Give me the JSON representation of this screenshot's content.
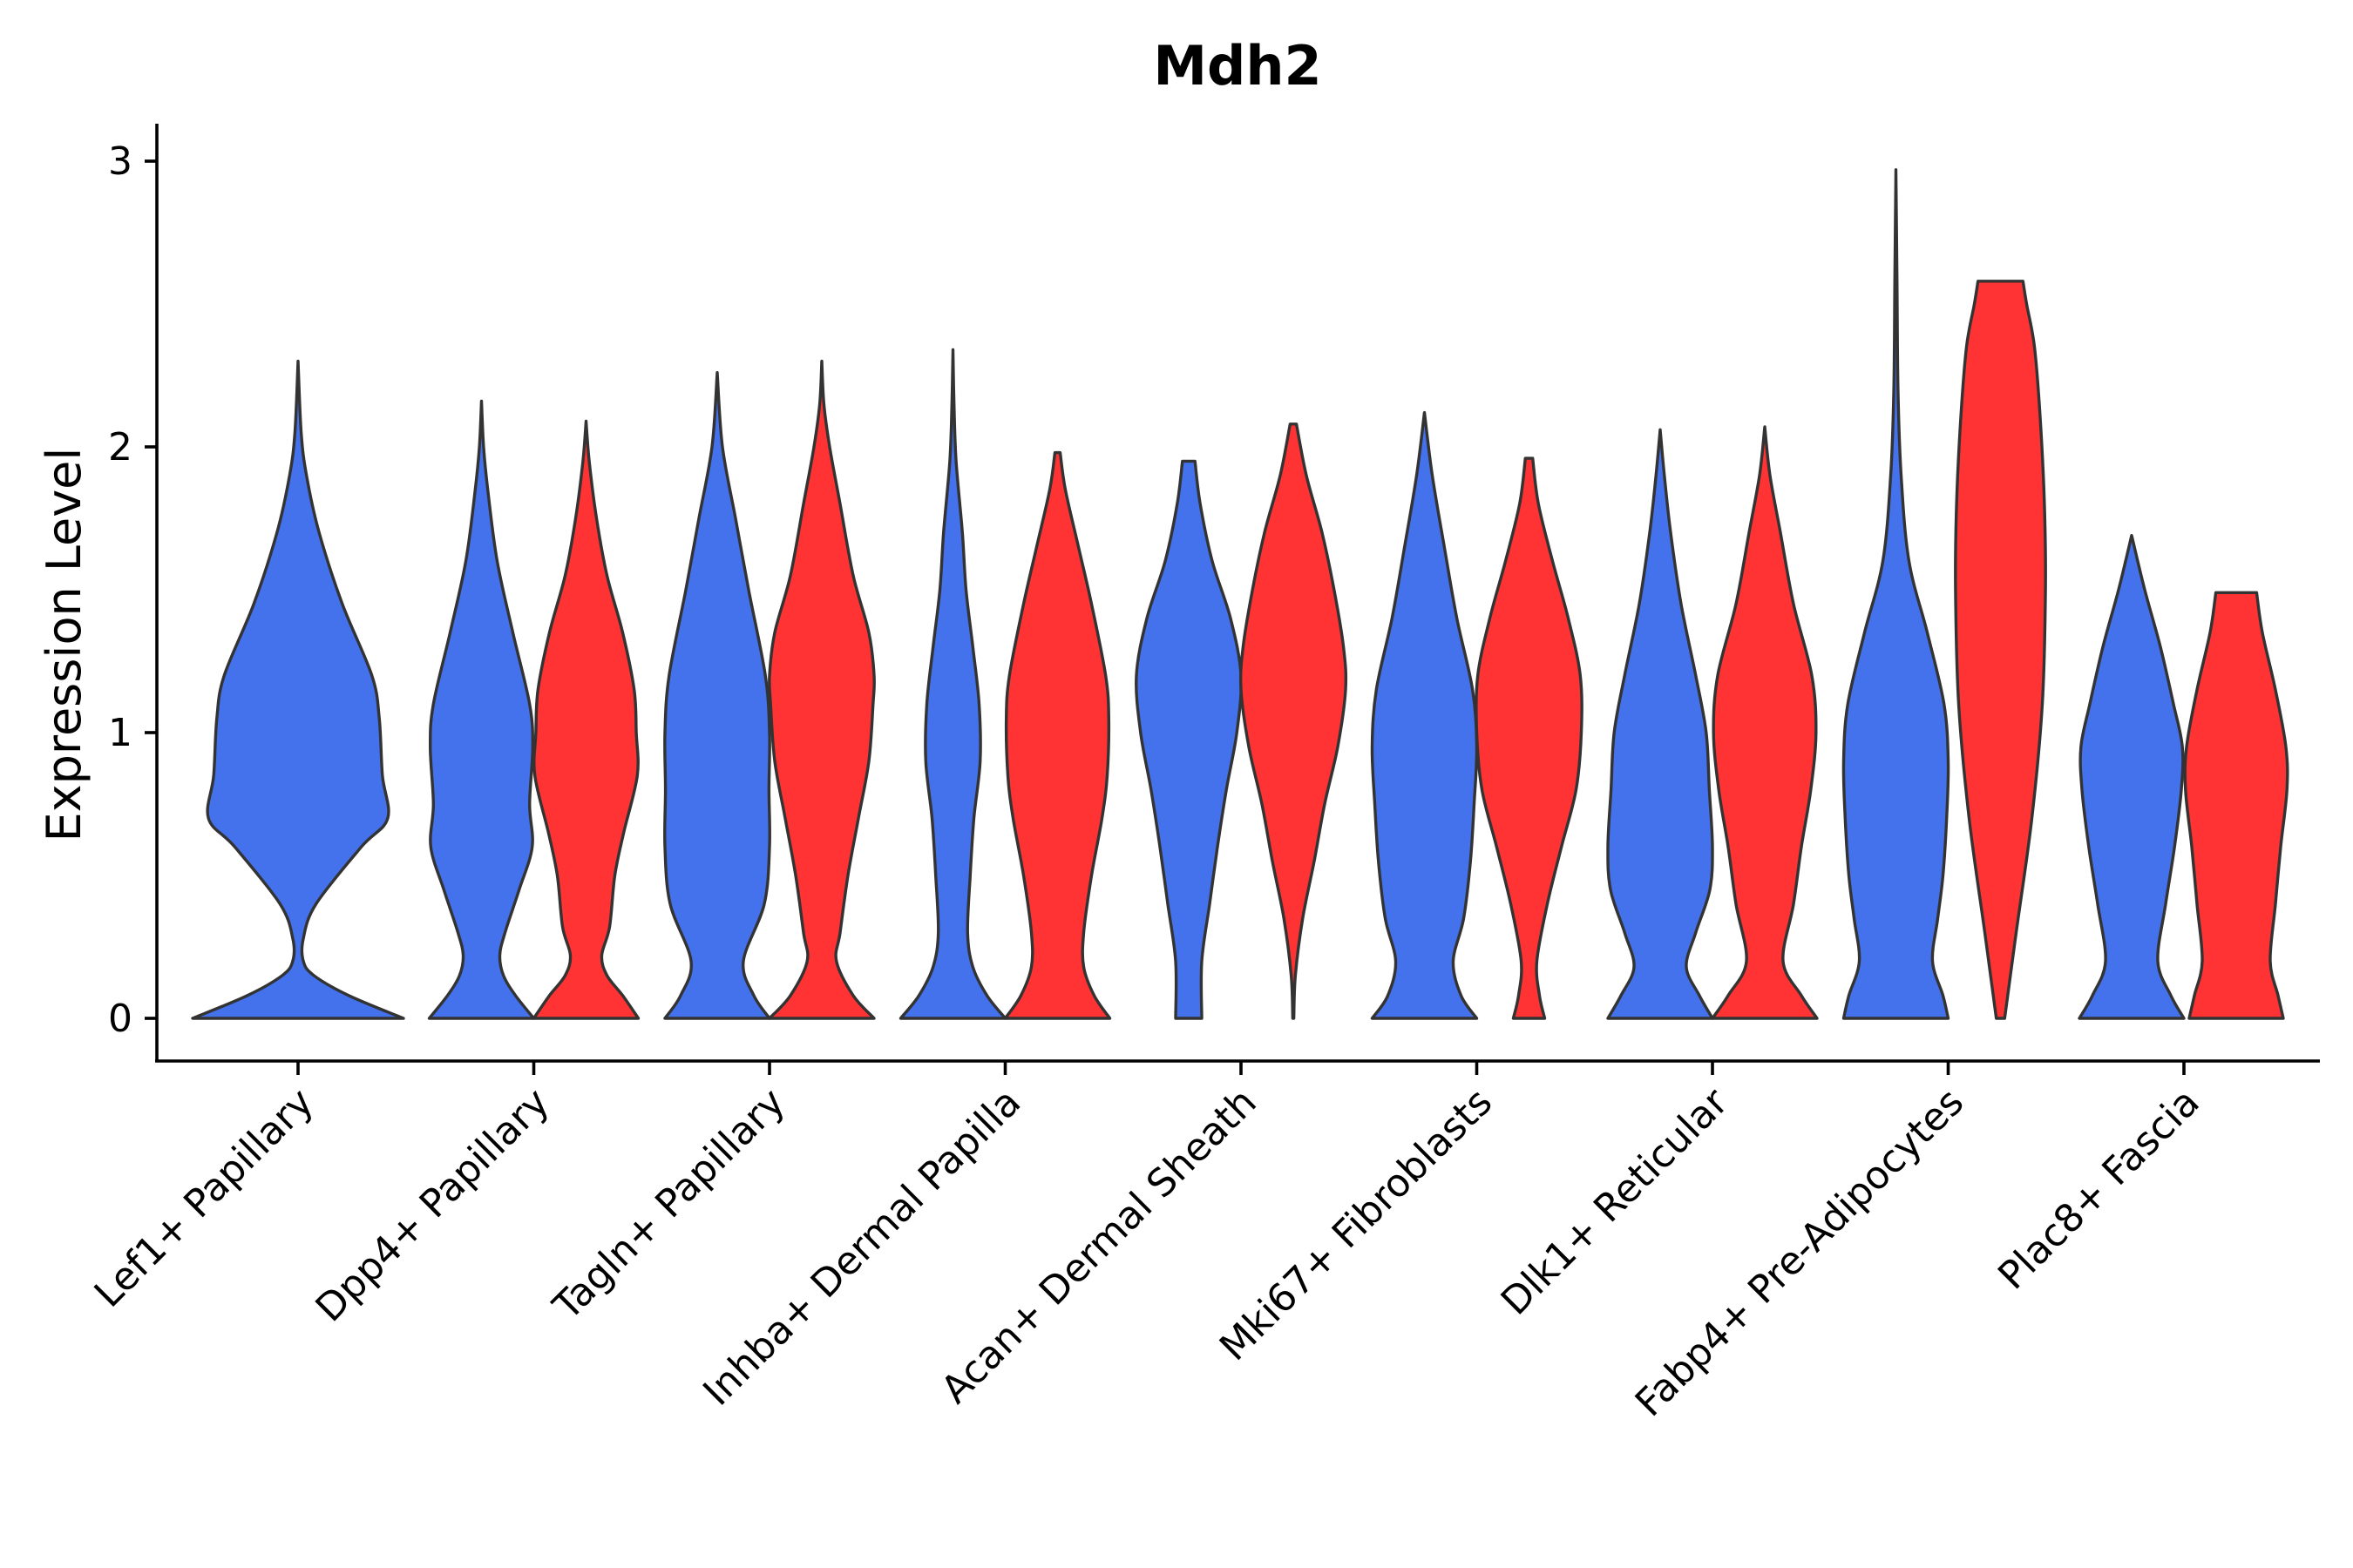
{
  "chart_data": {
    "type": "violin",
    "title": "Mdh2",
    "xlabel": "",
    "ylabel": "Expression Level",
    "ylim": [
      -0.15,
      3.15
    ],
    "yticks": [
      0,
      1,
      2,
      3
    ],
    "grid": false,
    "legend": "none",
    "colors": {
      "group_a": "#4472ED",
      "group_b": "#FF3333",
      "outline": "#333333"
    },
    "categories": [
      "Lef1+ Papillary",
      "Dpp4+ Papillary",
      "Tagln+ Papillary",
      "Inhba+ Dermal Papilla",
      "Acan+ Dermal Sheath",
      "Mki67+ Fibroblasts",
      "Dlk1+ Reticular",
      "Fabp4+ Pre-Adipocytes",
      "Plac8+ Fascia"
    ],
    "violins": [
      {
        "category": 0,
        "group": "a",
        "ymin": 0,
        "ymax": 2.3,
        "profile": [
          [
            0,
            1.0
          ],
          [
            0.08,
            0.48
          ],
          [
            0.15,
            0.15
          ],
          [
            0.2,
            0.05
          ],
          [
            0.28,
            0.05
          ],
          [
            0.4,
            0.17
          ],
          [
            0.6,
            0.6
          ],
          [
            0.7,
            0.85
          ],
          [
            0.85,
            0.8
          ],
          [
            1.05,
            0.77
          ],
          [
            1.2,
            0.7
          ],
          [
            1.45,
            0.42
          ],
          [
            1.7,
            0.2
          ],
          [
            1.9,
            0.08
          ],
          [
            2.05,
            0.03
          ],
          [
            2.3,
            0
          ]
        ]
      },
      {
        "category": 1,
        "group": "a",
        "ymin": 0,
        "ymax": 2.16,
        "profile": [
          [
            0,
            1.0
          ],
          [
            0.08,
            0.65
          ],
          [
            0.15,
            0.42
          ],
          [
            0.22,
            0.35
          ],
          [
            0.3,
            0.45
          ],
          [
            0.45,
            0.72
          ],
          [
            0.6,
            0.97
          ],
          [
            0.75,
            0.92
          ],
          [
            0.95,
            0.98
          ],
          [
            1.1,
            0.92
          ],
          [
            1.35,
            0.6
          ],
          [
            1.6,
            0.3
          ],
          [
            1.85,
            0.12
          ],
          [
            2.0,
            0.04
          ],
          [
            2.16,
            0
          ]
        ]
      },
      {
        "category": 1,
        "group": "b",
        "ymin": 0,
        "ymax": 2.09,
        "profile": [
          [
            0,
            1.0
          ],
          [
            0.08,
            0.7
          ],
          [
            0.15,
            0.4
          ],
          [
            0.22,
            0.3
          ],
          [
            0.32,
            0.45
          ],
          [
            0.5,
            0.55
          ],
          [
            0.65,
            0.72
          ],
          [
            0.85,
            0.98
          ],
          [
            1.0,
            0.96
          ],
          [
            1.15,
            0.92
          ],
          [
            1.35,
            0.7
          ],
          [
            1.55,
            0.4
          ],
          [
            1.75,
            0.2
          ],
          [
            1.95,
            0.06
          ],
          [
            2.09,
            0
          ]
        ]
      },
      {
        "category": 2,
        "group": "a",
        "ymin": 0,
        "ymax": 2.26,
        "profile": [
          [
            0,
            1.0
          ],
          [
            0.08,
            0.7
          ],
          [
            0.2,
            0.5
          ],
          [
            0.4,
            0.9
          ],
          [
            0.6,
            1.0
          ],
          [
            0.8,
            0.99
          ],
          [
            1.0,
            1.0
          ],
          [
            1.2,
            0.92
          ],
          [
            1.5,
            0.6
          ],
          [
            1.75,
            0.35
          ],
          [
            2.0,
            0.1
          ],
          [
            2.26,
            0
          ]
        ]
      },
      {
        "category": 2,
        "group": "b",
        "ymin": 0,
        "ymax": 2.3,
        "profile": [
          [
            0,
            1.0
          ],
          [
            0.08,
            0.6
          ],
          [
            0.2,
            0.28
          ],
          [
            0.3,
            0.35
          ],
          [
            0.5,
            0.5
          ],
          [
            0.7,
            0.7
          ],
          [
            0.9,
            0.9
          ],
          [
            1.1,
            0.98
          ],
          [
            1.2,
            1.0
          ],
          [
            1.35,
            0.9
          ],
          [
            1.55,
            0.6
          ],
          [
            1.8,
            0.35
          ],
          [
            2.0,
            0.15
          ],
          [
            2.15,
            0.04
          ],
          [
            2.3,
            0
          ]
        ]
      },
      {
        "category": 3,
        "group": "a",
        "ymin": 0,
        "ymax": 2.34,
        "profile": [
          [
            0,
            1.0
          ],
          [
            0.08,
            0.65
          ],
          [
            0.18,
            0.38
          ],
          [
            0.3,
            0.28
          ],
          [
            0.5,
            0.33
          ],
          [
            0.7,
            0.4
          ],
          [
            0.9,
            0.52
          ],
          [
            1.1,
            0.5
          ],
          [
            1.3,
            0.38
          ],
          [
            1.5,
            0.25
          ],
          [
            1.7,
            0.18
          ],
          [
            1.95,
            0.06
          ],
          [
            2.15,
            0.02
          ],
          [
            2.34,
            0
          ]
        ]
      },
      {
        "category": 3,
        "group": "b",
        "ymin": 0,
        "ymax": 1.98,
        "profile": [
          [
            0,
            1.0
          ],
          [
            0.08,
            0.7
          ],
          [
            0.18,
            0.5
          ],
          [
            0.3,
            0.5
          ],
          [
            0.5,
            0.65
          ],
          [
            0.7,
            0.85
          ],
          [
            0.85,
            0.95
          ],
          [
            1.05,
            0.98
          ],
          [
            1.2,
            0.92
          ],
          [
            1.45,
            0.65
          ],
          [
            1.65,
            0.4
          ],
          [
            1.85,
            0.15
          ],
          [
            1.98,
            0.05
          ]
        ]
      },
      {
        "category": 4,
        "group": "a",
        "ymin": 0,
        "ymax": 1.95,
        "profile": [
          [
            0,
            0.25
          ],
          [
            0.2,
            0.25
          ],
          [
            0.4,
            0.4
          ],
          [
            0.6,
            0.55
          ],
          [
            0.8,
            0.72
          ],
          [
            1.0,
            0.92
          ],
          [
            1.2,
            1.0
          ],
          [
            1.4,
            0.8
          ],
          [
            1.6,
            0.45
          ],
          [
            1.8,
            0.22
          ],
          [
            1.95,
            0.12
          ]
        ]
      },
      {
        "category": 4,
        "group": "b",
        "ymin": 0,
        "ymax": 2.08,
        "profile": [
          [
            0,
            0.01
          ],
          [
            0.15,
            0.04
          ],
          [
            0.35,
            0.18
          ],
          [
            0.55,
            0.4
          ],
          [
            0.75,
            0.6
          ],
          [
            0.95,
            0.85
          ],
          [
            1.15,
            1.0
          ],
          [
            1.3,
            0.96
          ],
          [
            1.5,
            0.78
          ],
          [
            1.7,
            0.55
          ],
          [
            1.9,
            0.25
          ],
          [
            2.08,
            0.06
          ]
        ]
      },
      {
        "category": 5,
        "group": "a",
        "ymin": 0,
        "ymax": 2.12,
        "profile": [
          [
            0,
            1.0
          ],
          [
            0.08,
            0.7
          ],
          [
            0.2,
            0.55
          ],
          [
            0.35,
            0.75
          ],
          [
            0.55,
            0.88
          ],
          [
            0.75,
            0.95
          ],
          [
            0.95,
            1.0
          ],
          [
            1.15,
            0.92
          ],
          [
            1.4,
            0.62
          ],
          [
            1.65,
            0.38
          ],
          [
            1.9,
            0.15
          ],
          [
            2.12,
            0
          ]
        ]
      },
      {
        "category": 5,
        "group": "b",
        "ymin": 0,
        "ymax": 1.96,
        "profile": [
          [
            0,
            0.3
          ],
          [
            0.08,
            0.2
          ],
          [
            0.2,
            0.15
          ],
          [
            0.4,
            0.35
          ],
          [
            0.6,
            0.62
          ],
          [
            0.8,
            0.9
          ],
          [
            1.0,
            1.0
          ],
          [
            1.2,
            0.98
          ],
          [
            1.4,
            0.75
          ],
          [
            1.6,
            0.45
          ],
          [
            1.8,
            0.18
          ],
          [
            1.96,
            0.07
          ]
        ]
      },
      {
        "category": 6,
        "group": "a",
        "ymin": 0,
        "ymax": 2.06,
        "profile": [
          [
            0,
            1.0
          ],
          [
            0.08,
            0.75
          ],
          [
            0.18,
            0.5
          ],
          [
            0.3,
            0.68
          ],
          [
            0.45,
            0.95
          ],
          [
            0.6,
            1.0
          ],
          [
            0.8,
            0.94
          ],
          [
            1.0,
            0.88
          ],
          [
            1.2,
            0.68
          ],
          [
            1.45,
            0.4
          ],
          [
            1.7,
            0.2
          ],
          [
            1.9,
            0.08
          ],
          [
            2.06,
            0
          ]
        ]
      },
      {
        "category": 6,
        "group": "b",
        "ymin": 0,
        "ymax": 2.07,
        "profile": [
          [
            0,
            1.0
          ],
          [
            0.08,
            0.7
          ],
          [
            0.2,
            0.35
          ],
          [
            0.4,
            0.55
          ],
          [
            0.6,
            0.7
          ],
          [
            0.8,
            0.88
          ],
          [
            1.0,
            0.98
          ],
          [
            1.2,
            0.9
          ],
          [
            1.45,
            0.55
          ],
          [
            1.7,
            0.3
          ],
          [
            1.9,
            0.1
          ],
          [
            2.07,
            0
          ]
        ]
      },
      {
        "category": 7,
        "group": "a",
        "ymin": 0,
        "ymax": 2.97,
        "profile": [
          [
            0,
            1.0
          ],
          [
            0.08,
            0.9
          ],
          [
            0.2,
            0.7
          ],
          [
            0.35,
            0.8
          ],
          [
            0.5,
            0.9
          ],
          [
            0.7,
            0.97
          ],
          [
            0.9,
            1.0
          ],
          [
            1.1,
            0.92
          ],
          [
            1.35,
            0.6
          ],
          [
            1.6,
            0.25
          ],
          [
            1.9,
            0.1
          ],
          [
            2.2,
            0.04
          ],
          [
            2.6,
            0.02
          ],
          [
            2.97,
            0
          ]
        ]
      },
      {
        "category": 7,
        "group": "b",
        "ymin": 0,
        "ymax": 2.58,
        "profile": [
          [
            0,
            0.08
          ],
          [
            0.3,
            0.3
          ],
          [
            0.7,
            0.6
          ],
          [
            1.1,
            0.8
          ],
          [
            1.5,
            0.86
          ],
          [
            1.8,
            0.84
          ],
          [
            2.1,
            0.76
          ],
          [
            2.35,
            0.65
          ],
          [
            2.5,
            0.5
          ],
          [
            2.58,
            0.43
          ]
        ]
      },
      {
        "category": 8,
        "group": "a",
        "ymin": 0,
        "ymax": 1.69,
        "profile": [
          [
            0,
            1.0
          ],
          [
            0.08,
            0.75
          ],
          [
            0.2,
            0.5
          ],
          [
            0.4,
            0.65
          ],
          [
            0.6,
            0.82
          ],
          [
            0.8,
            0.95
          ],
          [
            0.95,
            0.97
          ],
          [
            1.1,
            0.8
          ],
          [
            1.3,
            0.55
          ],
          [
            1.5,
            0.25
          ],
          [
            1.69,
            0
          ]
        ]
      },
      {
        "category": 8,
        "group": "b",
        "ymin": 0,
        "ymax": 1.49,
        "profile": [
          [
            0,
            0.9
          ],
          [
            0.08,
            0.8
          ],
          [
            0.2,
            0.65
          ],
          [
            0.4,
            0.75
          ],
          [
            0.6,
            0.85
          ],
          [
            0.8,
            0.97
          ],
          [
            0.95,
            0.95
          ],
          [
            1.15,
            0.75
          ],
          [
            1.35,
            0.5
          ],
          [
            1.49,
            0.39
          ]
        ]
      }
    ]
  }
}
